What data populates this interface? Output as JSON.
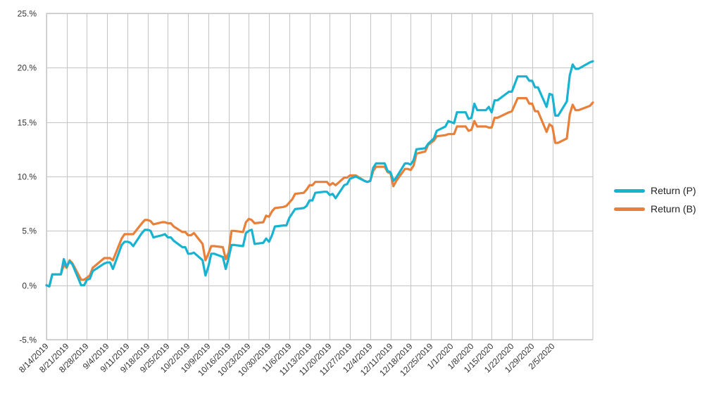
{
  "chart_data": {
    "type": "line",
    "title": "",
    "xlabel": "",
    "ylabel": "",
    "ylim": [
      -5,
      25
    ],
    "yticks": [
      -5,
      0,
      5,
      10,
      15,
      20,
      25
    ],
    "ytick_labels": [
      "-5.%",
      "0.%",
      "5.%",
      "10.%",
      "15.%",
      "20.%",
      "25.%"
    ],
    "x_tick_labels": [
      "8/14/2019",
      "8/21/2019",
      "8/28/2019",
      "9/4/2019",
      "9/11/2019",
      "9/18/2019",
      "9/25/2019",
      "10/2/2019",
      "10/9/2019",
      "10/16/2019",
      "10/23/2019",
      "10/30/2019",
      "11/6/2019",
      "11/13/2019",
      "11/20/2019",
      "11/27/2019",
      "12/4/2019",
      "12/11/2019",
      "12/18/2019",
      "12/25/2019",
      "1/1/2020",
      "1/8/2020",
      "1/15/2020",
      "1/22/2020",
      "1/29/2020",
      "2/5/2020"
    ],
    "grid": true,
    "legend_position": "right",
    "series": [
      {
        "name": "Return (P)",
        "color": "#17b3d1",
        "values": [
          [
            "8/14/2019",
            0.0
          ],
          [
            "8/15/2019",
            -0.1
          ],
          [
            "8/16/2019",
            1.0
          ],
          [
            "8/19/2019",
            1.0
          ],
          [
            "8/20/2019",
            2.4
          ],
          [
            "8/21/2019",
            1.7
          ],
          [
            "8/22/2019",
            2.2
          ],
          [
            "8/23/2019",
            1.9
          ],
          [
            "8/26/2019",
            0.0
          ],
          [
            "8/27/2019",
            0.0
          ],
          [
            "8/28/2019",
            0.5
          ],
          [
            "8/29/2019",
            0.6
          ],
          [
            "8/30/2019",
            1.3
          ],
          [
            "9/3/2019",
            2.0
          ],
          [
            "9/4/2019",
            2.1
          ],
          [
            "9/5/2019",
            2.1
          ],
          [
            "9/6/2019",
            1.5
          ],
          [
            "9/9/2019",
            3.7
          ],
          [
            "9/10/2019",
            4.0
          ],
          [
            "9/11/2019",
            4.0
          ],
          [
            "9/12/2019",
            3.9
          ],
          [
            "9/13/2019",
            3.6
          ],
          [
            "9/16/2019",
            4.8
          ],
          [
            "9/17/2019",
            5.1
          ],
          [
            "9/18/2019",
            5.1
          ],
          [
            "9/19/2019",
            5.0
          ],
          [
            "9/20/2019",
            4.4
          ],
          [
            "9/23/2019",
            4.6
          ],
          [
            "9/24/2019",
            4.7
          ],
          [
            "9/25/2019",
            4.4
          ],
          [
            "9/26/2019",
            4.4
          ],
          [
            "9/27/2019",
            4.1
          ],
          [
            "9/30/2019",
            3.5
          ],
          [
            "10/1/2019",
            3.5
          ],
          [
            "10/2/2019",
            2.9
          ],
          [
            "10/3/2019",
            2.9
          ],
          [
            "10/4/2019",
            3.0
          ],
          [
            "10/7/2019",
            2.3
          ],
          [
            "10/8/2019",
            0.9
          ],
          [
            "10/9/2019",
            1.7
          ],
          [
            "10/10/2019",
            2.9
          ],
          [
            "10/11/2019",
            2.9
          ],
          [
            "10/14/2019",
            2.6
          ],
          [
            "10/15/2019",
            1.5
          ],
          [
            "10/16/2019",
            2.5
          ],
          [
            "10/17/2019",
            3.7
          ],
          [
            "10/18/2019",
            3.7
          ],
          [
            "10/21/2019",
            3.6
          ],
          [
            "10/22/2019",
            4.8
          ],
          [
            "10/23/2019",
            5.0
          ],
          [
            "10/24/2019",
            5.1
          ],
          [
            "10/25/2019",
            3.8
          ],
          [
            "10/28/2019",
            3.9
          ],
          [
            "10/29/2019",
            4.3
          ],
          [
            "10/30/2019",
            4.0
          ],
          [
            "10/31/2019",
            4.6
          ],
          [
            "11/1/2019",
            5.4
          ],
          [
            "11/4/2019",
            5.5
          ],
          [
            "11/5/2019",
            5.5
          ],
          [
            "11/6/2019",
            6.2
          ],
          [
            "11/7/2019",
            6.6
          ],
          [
            "11/8/2019",
            7.0
          ],
          [
            "11/11/2019",
            7.1
          ],
          [
            "11/12/2019",
            7.3
          ],
          [
            "11/13/2019",
            7.8
          ],
          [
            "11/14/2019",
            7.8
          ],
          [
            "11/15/2019",
            8.5
          ],
          [
            "11/18/2019",
            8.6
          ],
          [
            "11/19/2019",
            8.6
          ],
          [
            "11/20/2019",
            8.3
          ],
          [
            "11/21/2019",
            8.4
          ],
          [
            "11/22/2019",
            8.0
          ],
          [
            "11/25/2019",
            9.2
          ],
          [
            "11/26/2019",
            9.3
          ],
          [
            "11/27/2019",
            9.8
          ],
          [
            "11/29/2019",
            10.0
          ],
          [
            "12/2/2019",
            9.6
          ],
          [
            "12/3/2019",
            9.5
          ],
          [
            "12/4/2019",
            9.6
          ],
          [
            "12/5/2019",
            10.8
          ],
          [
            "12/6/2019",
            11.2
          ],
          [
            "12/9/2019",
            11.2
          ],
          [
            "12/10/2019",
            10.5
          ],
          [
            "12/11/2019",
            10.4
          ],
          [
            "12/12/2019",
            9.6
          ],
          [
            "12/13/2019",
            9.9
          ],
          [
            "12/16/2019",
            11.2
          ],
          [
            "12/17/2019",
            11.2
          ],
          [
            "12/18/2019",
            11.1
          ],
          [
            "12/19/2019",
            11.5
          ],
          [
            "12/20/2019",
            12.5
          ],
          [
            "12/23/2019",
            12.6
          ],
          [
            "12/24/2019",
            13.0
          ],
          [
            "12/26/2019",
            13.5
          ],
          [
            "12/27/2019",
            14.2
          ],
          [
            "12/30/2019",
            14.6
          ],
          [
            "12/31/2019",
            15.1
          ],
          [
            "1/2/2020",
            14.9
          ],
          [
            "1/3/2020",
            15.9
          ],
          [
            "1/6/2020",
            15.9
          ],
          [
            "1/7/2020",
            15.3
          ],
          [
            "1/8/2020",
            15.4
          ],
          [
            "1/9/2020",
            16.7
          ],
          [
            "1/10/2020",
            16.1
          ],
          [
            "1/13/2020",
            16.1
          ],
          [
            "1/14/2020",
            16.4
          ],
          [
            "1/15/2020",
            15.9
          ],
          [
            "1/16/2020",
            17.0
          ],
          [
            "1/17/2020",
            17.0
          ],
          [
            "1/21/2020",
            17.8
          ],
          [
            "1/22/2020",
            17.8
          ],
          [
            "1/23/2020",
            18.5
          ],
          [
            "1/24/2020",
            19.2
          ],
          [
            "1/27/2020",
            19.2
          ],
          [
            "1/28/2020",
            18.8
          ],
          [
            "1/29/2020",
            18.8
          ],
          [
            "1/30/2020",
            18.2
          ],
          [
            "1/31/2020",
            18.2
          ],
          [
            "2/3/2020",
            16.4
          ],
          [
            "2/4/2020",
            17.6
          ],
          [
            "2/5/2020",
            17.5
          ],
          [
            "2/6/2020",
            15.6
          ],
          [
            "2/7/2020",
            15.6
          ],
          [
            "2/10/2020",
            16.9
          ],
          [
            "2/11/2020",
            19.3
          ],
          [
            "2/12/2020",
            20.3
          ],
          [
            "2/13/2020",
            19.9
          ],
          [
            "2/14/2020",
            19.9
          ],
          [
            "2/18/2020",
            20.5
          ],
          [
            "2/19/2020",
            20.6
          ]
        ]
      },
      {
        "name": "Return (B)",
        "color": "#e8803a",
        "values": [
          [
            "8/14/2019",
            0.0
          ],
          [
            "8/15/2019",
            -0.1
          ],
          [
            "8/16/2019",
            1.0
          ],
          [
            "8/19/2019",
            1.0
          ],
          [
            "8/20/2019",
            1.9
          ],
          [
            "8/21/2019",
            1.6
          ],
          [
            "8/22/2019",
            2.3
          ],
          [
            "8/23/2019",
            2.0
          ],
          [
            "8/26/2019",
            0.5
          ],
          [
            "8/27/2019",
            0.5
          ],
          [
            "8/28/2019",
            0.7
          ],
          [
            "8/29/2019",
            0.9
          ],
          [
            "8/30/2019",
            1.6
          ],
          [
            "9/3/2019",
            2.5
          ],
          [
            "9/4/2019",
            2.5
          ],
          [
            "9/5/2019",
            2.5
          ],
          [
            "9/6/2019",
            2.3
          ],
          [
            "9/9/2019",
            4.3
          ],
          [
            "9/10/2019",
            4.7
          ],
          [
            "9/11/2019",
            4.7
          ],
          [
            "9/12/2019",
            4.7
          ],
          [
            "9/13/2019",
            4.7
          ],
          [
            "9/16/2019",
            5.7
          ],
          [
            "9/17/2019",
            6.0
          ],
          [
            "9/18/2019",
            6.0
          ],
          [
            "9/19/2019",
            5.9
          ],
          [
            "9/20/2019",
            5.6
          ],
          [
            "9/23/2019",
            5.8
          ],
          [
            "9/24/2019",
            5.8
          ],
          [
            "9/25/2019",
            5.7
          ],
          [
            "9/26/2019",
            5.7
          ],
          [
            "9/27/2019",
            5.4
          ],
          [
            "9/30/2019",
            4.9
          ],
          [
            "10/1/2019",
            4.9
          ],
          [
            "10/2/2019",
            4.6
          ],
          [
            "10/3/2019",
            4.6
          ],
          [
            "10/4/2019",
            4.8
          ],
          [
            "10/7/2019",
            3.8
          ],
          [
            "10/8/2019",
            2.3
          ],
          [
            "10/9/2019",
            2.9
          ],
          [
            "10/10/2019",
            3.6
          ],
          [
            "10/11/2019",
            3.6
          ],
          [
            "10/14/2019",
            3.5
          ],
          [
            "10/15/2019",
            2.4
          ],
          [
            "10/16/2019",
            3.0
          ],
          [
            "10/17/2019",
            5.0
          ],
          [
            "10/18/2019",
            5.0
          ],
          [
            "10/21/2019",
            4.9
          ],
          [
            "10/22/2019",
            5.8
          ],
          [
            "10/23/2019",
            6.1
          ],
          [
            "10/24/2019",
            6.0
          ],
          [
            "10/25/2019",
            5.7
          ],
          [
            "10/28/2019",
            5.8
          ],
          [
            "10/29/2019",
            6.4
          ],
          [
            "10/30/2019",
            6.3
          ],
          [
            "10/31/2019",
            6.8
          ],
          [
            "11/1/2019",
            7.1
          ],
          [
            "11/4/2019",
            7.2
          ],
          [
            "11/5/2019",
            7.3
          ],
          [
            "11/6/2019",
            7.6
          ],
          [
            "11/7/2019",
            7.9
          ],
          [
            "11/8/2019",
            8.4
          ],
          [
            "11/11/2019",
            8.5
          ],
          [
            "11/12/2019",
            8.8
          ],
          [
            "11/13/2019",
            9.2
          ],
          [
            "11/14/2019",
            9.2
          ],
          [
            "11/15/2019",
            9.5
          ],
          [
            "11/18/2019",
            9.5
          ],
          [
            "11/19/2019",
            9.5
          ],
          [
            "11/20/2019",
            9.2
          ],
          [
            "11/21/2019",
            9.4
          ],
          [
            "11/22/2019",
            9.2
          ],
          [
            "11/25/2019",
            9.9
          ],
          [
            "11/26/2019",
            9.9
          ],
          [
            "11/27/2019",
            10.1
          ],
          [
            "11/29/2019",
            10.1
          ],
          [
            "12/2/2019",
            9.6
          ],
          [
            "12/3/2019",
            9.5
          ],
          [
            "12/4/2019",
            9.6
          ],
          [
            "12/5/2019",
            10.5
          ],
          [
            "12/6/2019",
            10.9
          ],
          [
            "12/9/2019",
            10.9
          ],
          [
            "12/10/2019",
            10.4
          ],
          [
            "12/11/2019",
            10.3
          ],
          [
            "12/12/2019",
            9.1
          ],
          [
            "12/13/2019",
            9.6
          ],
          [
            "12/16/2019",
            10.7
          ],
          [
            "12/17/2019",
            10.7
          ],
          [
            "12/18/2019",
            10.6
          ],
          [
            "12/19/2019",
            11.0
          ],
          [
            "12/20/2019",
            12.1
          ],
          [
            "12/23/2019",
            12.3
          ],
          [
            "12/24/2019",
            12.9
          ],
          [
            "12/26/2019",
            13.3
          ],
          [
            "12/27/2019",
            13.7
          ],
          [
            "12/30/2019",
            13.8
          ],
          [
            "12/31/2019",
            13.9
          ],
          [
            "1/2/2020",
            13.9
          ],
          [
            "1/3/2020",
            14.6
          ],
          [
            "1/6/2020",
            14.6
          ],
          [
            "1/7/2020",
            14.2
          ],
          [
            "1/8/2020",
            14.3
          ],
          [
            "1/9/2020",
            15.1
          ],
          [
            "1/10/2020",
            14.6
          ],
          [
            "1/13/2020",
            14.6
          ],
          [
            "1/14/2020",
            14.5
          ],
          [
            "1/15/2020",
            14.5
          ],
          [
            "1/16/2020",
            15.4
          ],
          [
            "1/17/2020",
            15.4
          ],
          [
            "1/21/2020",
            15.9
          ],
          [
            "1/22/2020",
            16.0
          ],
          [
            "1/23/2020",
            16.6
          ],
          [
            "1/24/2020",
            17.2
          ],
          [
            "1/27/2020",
            17.2
          ],
          [
            "1/28/2020",
            16.7
          ],
          [
            "1/29/2020",
            16.7
          ],
          [
            "1/30/2020",
            16.0
          ],
          [
            "1/31/2020",
            16.0
          ],
          [
            "2/3/2020",
            14.1
          ],
          [
            "2/4/2020",
            14.8
          ],
          [
            "2/5/2020",
            14.6
          ],
          [
            "2/6/2020",
            13.1
          ],
          [
            "2/7/2020",
            13.1
          ],
          [
            "2/10/2020",
            13.5
          ],
          [
            "2/11/2020",
            15.7
          ],
          [
            "2/12/2020",
            16.6
          ],
          [
            "2/13/2020",
            16.1
          ],
          [
            "2/14/2020",
            16.1
          ],
          [
            "2/18/2020",
            16.5
          ],
          [
            "2/19/2020",
            16.8
          ]
        ]
      }
    ]
  },
  "legend": {
    "items": [
      {
        "label": "Return (P)",
        "color": "#17b3d1"
      },
      {
        "label": "Return (B)",
        "color": "#e8803a"
      }
    ]
  }
}
